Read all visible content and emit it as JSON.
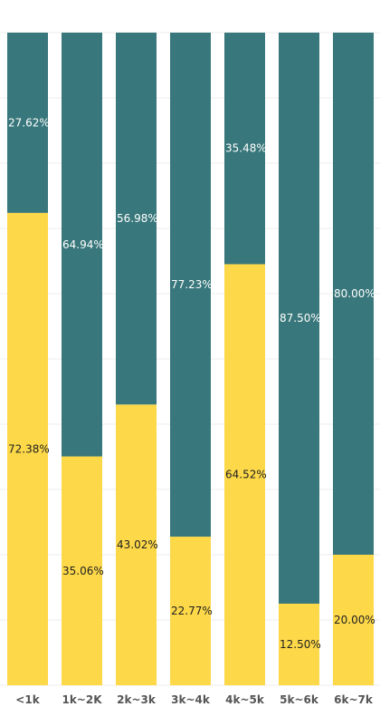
{
  "chart_data": {
    "type": "bar",
    "stacked": true,
    "percent": true,
    "categories": [
      "<1k",
      "1k~2K",
      "2k~3k",
      "3k~4k",
      "4k~5k",
      "5k~6k",
      "6k~7k"
    ],
    "series": [
      {
        "values": [
          72.38,
          35.06,
          43.02,
          22.77,
          64.52,
          12.5,
          20.0
        ],
        "labels": [
          "72.38%",
          "35.06%",
          "43.02%",
          "22.77%",
          "64.52%",
          "12.50%",
          "20.00%"
        ],
        "color": "#FDD849"
      },
      {
        "values": [
          27.62,
          64.94,
          56.98,
          77.23,
          35.48,
          87.5,
          80.0
        ],
        "labels": [
          "27.62%",
          "64.94%",
          "56.98%",
          "77.23%",
          "35.48%",
          "87.50%",
          "80.00%"
        ],
        "color": "#38777B"
      }
    ],
    "ylim": [
      0,
      100
    ],
    "grid": true,
    "grid_color": "#EEEEEE"
  }
}
